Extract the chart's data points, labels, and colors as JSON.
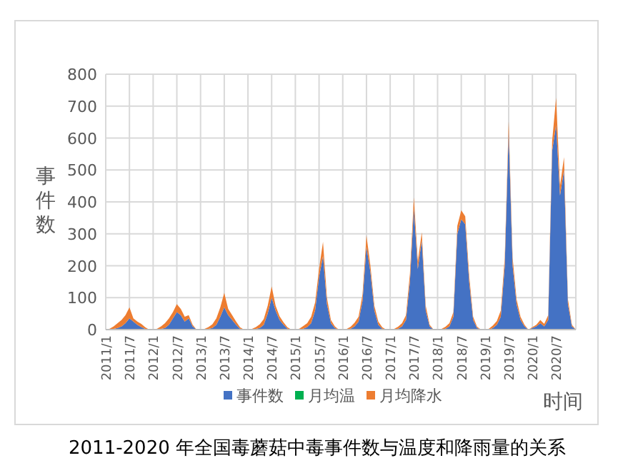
{
  "chart_data": {
    "type": "area",
    "stacked": true,
    "title": "2011-2020 年全国毒蘑菇中毒事件数与温度和降雨量的关系",
    "xlabel": "时间",
    "ylabel": "事件数",
    "categories": [
      "2011/1",
      null,
      null,
      null,
      null,
      null,
      "2011/7",
      null,
      null,
      null,
      null,
      null,
      "2012/1",
      null,
      null,
      null,
      null,
      null,
      "2012/7",
      null,
      null,
      null,
      null,
      null,
      "2013/1",
      null,
      null,
      null,
      null,
      null,
      "2013/7",
      null,
      null,
      null,
      null,
      null,
      "2014/1",
      null,
      null,
      null,
      null,
      null,
      "2014/7",
      null,
      null,
      null,
      null,
      null,
      "2015/1",
      null,
      null,
      null,
      null,
      null,
      "2015/7",
      null,
      null,
      null,
      null,
      null,
      "2016/1",
      null,
      null,
      null,
      null,
      null,
      "2016/7",
      null,
      null,
      null,
      null,
      null,
      "2017/1",
      null,
      null,
      null,
      null,
      null,
      "2017/7",
      null,
      null,
      null,
      null,
      null,
      "2018/1",
      null,
      null,
      null,
      null,
      null,
      "2018/7",
      null,
      null,
      null,
      null,
      null,
      "2019/1",
      null,
      null,
      null,
      null,
      null,
      "2019/7",
      null,
      null,
      null,
      null,
      null,
      "2020/1",
      null,
      null,
      null,
      null,
      null,
      "2020/7",
      null,
      null,
      null,
      null,
      null
    ],
    "series": [
      {
        "name": "事件数",
        "color": "#4472c4",
        "values": [
          0,
          0,
          2,
          5,
          10,
          20,
          35,
          25,
          15,
          8,
          2,
          0,
          0,
          0,
          2,
          5,
          15,
          35,
          55,
          45,
          25,
          35,
          10,
          0,
          0,
          0,
          2,
          5,
          15,
          40,
          70,
          45,
          30,
          15,
          3,
          0,
          0,
          0,
          2,
          5,
          15,
          50,
          100,
          60,
          30,
          15,
          3,
          0,
          0,
          0,
          3,
          8,
          20,
          60,
          165,
          230,
          80,
          20,
          5,
          0,
          0,
          0,
          3,
          10,
          25,
          90,
          260,
          180,
          60,
          15,
          3,
          0,
          0,
          0,
          3,
          10,
          30,
          150,
          380,
          190,
          280,
          60,
          10,
          0,
          0,
          0,
          3,
          10,
          40,
          300,
          345,
          330,
          150,
          30,
          5,
          0,
          0,
          0,
          5,
          15,
          40,
          200,
          620,
          200,
          80,
          30,
          10,
          0,
          5,
          10,
          20,
          10,
          30,
          560,
          640,
          420,
          500,
          80,
          10,
          0
        ]
      },
      {
        "name": "月均温",
        "color": "#00b050",
        "values": [
          null,
          null,
          null,
          null,
          null,
          null,
          null,
          null,
          null,
          null,
          null,
          null,
          null,
          null,
          null,
          null,
          null,
          null,
          null,
          null,
          null,
          null,
          null,
          null,
          null,
          null,
          null,
          null,
          null,
          null,
          null,
          null,
          null,
          null,
          null,
          null,
          null,
          null,
          null,
          null,
          null,
          null,
          null,
          null,
          null,
          null,
          null,
          null,
          null,
          null,
          null,
          null,
          null,
          null,
          null,
          null,
          null,
          null,
          null,
          null,
          null,
          null,
          null,
          null,
          null,
          null,
          null,
          null,
          null,
          null,
          null,
          null,
          null,
          null,
          null,
          null,
          null,
          null,
          null,
          null,
          null,
          null,
          null,
          null,
          null,
          null,
          null,
          null,
          null,
          null,
          null,
          null,
          null,
          null,
          null,
          null,
          null,
          null,
          null,
          null,
          null,
          null,
          null,
          null,
          null,
          null,
          null,
          null,
          null,
          null,
          null,
          null,
          null,
          null,
          null,
          null,
          null,
          null,
          null,
          null
        ]
      },
      {
        "name": "月均降水",
        "color": "#ed7d31",
        "values": [
          0,
          3,
          8,
          15,
          20,
          25,
          35,
          10,
          10,
          10,
          5,
          0,
          0,
          3,
          8,
          15,
          20,
          20,
          25,
          20,
          15,
          10,
          5,
          0,
          0,
          2,
          6,
          12,
          20,
          30,
          45,
          20,
          15,
          10,
          4,
          0,
          0,
          2,
          6,
          12,
          18,
          25,
          35,
          15,
          12,
          8,
          4,
          0,
          0,
          3,
          8,
          12,
          20,
          25,
          25,
          45,
          20,
          10,
          5,
          0,
          0,
          2,
          6,
          12,
          15,
          20,
          35,
          20,
          15,
          10,
          4,
          0,
          0,
          2,
          6,
          10,
          15,
          25,
          34,
          24,
          25,
          15,
          5,
          0,
          0,
          2,
          6,
          10,
          15,
          25,
          29,
          25,
          20,
          10,
          4,
          0,
          0,
          3,
          8,
          12,
          20,
          25,
          32,
          25,
          15,
          10,
          5,
          0,
          3,
          5,
          10,
          8,
          15,
          30,
          86,
          30,
          40,
          15,
          5,
          0
        ]
      }
    ],
    "ylim": [
      0,
      800
    ],
    "yticks": [
      0,
      100,
      200,
      300,
      400,
      500,
      600,
      700,
      800
    ],
    "grid": true,
    "legend": "bottom"
  }
}
